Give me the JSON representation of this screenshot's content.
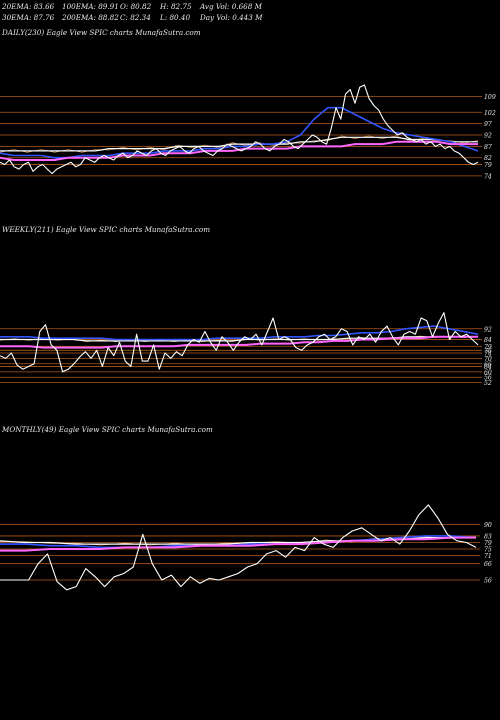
{
  "header": {
    "row1": [
      "20EMA: 83.66",
      "100EMA: 89.91",
      "O: 80.82",
      "H: 82.75",
      "Avg Vol: 0.668  M"
    ],
    "row2": [
      "30EMA: 87.76",
      "200EMA: 88.82",
      "C: 82.34",
      "L: 80.40",
      "Day Vol: 0.443 M"
    ]
  },
  "colors": {
    "background": "#000000",
    "price": "#ffffff",
    "ema_short": "#ff66ff",
    "ema_mid": "#3355ff",
    "ema_long": "#ffffff",
    "level_lines": "#b05a1c",
    "thin_ema": "#d4a060"
  },
  "chart_data": [
    {
      "type": "line",
      "title": "DAILY(230) Eagle  View  SPIC charts MunafaSutra.com",
      "y_ticks": [
        "109",
        "102",
        "97",
        "92",
        "87",
        "82",
        "79",
        "74"
      ],
      "ylim": [
        70,
        125
      ],
      "price": [
        80,
        79,
        81,
        78,
        77,
        79,
        80,
        76,
        78,
        79,
        77,
        75,
        77,
        78,
        79,
        80,
        78,
        79,
        82,
        81,
        80,
        82,
        83,
        82,
        81,
        83,
        84,
        82,
        83,
        85,
        84,
        83,
        85,
        86,
        84,
        83,
        85,
        86,
        87,
        85,
        84,
        86,
        87,
        85,
        84,
        83,
        85,
        86,
        88,
        87,
        86,
        85,
        86,
        87,
        89,
        88,
        86,
        85,
        87,
        88,
        90,
        89,
        87,
        86,
        88,
        90,
        92,
        91,
        89,
        88,
        95,
        104,
        99,
        110,
        112,
        106,
        113,
        114,
        108,
        105,
        103,
        99,
        96,
        94,
        92,
        93,
        91,
        90,
        89,
        90,
        88,
        89,
        87,
        88,
        86,
        87,
        85,
        84,
        82,
        80,
        79,
        80
      ],
      "ema_pink": [
        82,
        81,
        81,
        81,
        81,
        82,
        82,
        82,
        82,
        83,
        83,
        83,
        84,
        84,
        84,
        85,
        85,
        85,
        86,
        86,
        86,
        86,
        87,
        87,
        87,
        87,
        88,
        88,
        88,
        89,
        89,
        89,
        89,
        88,
        88,
        88
      ],
      "ema_blue": [
        84,
        83,
        83,
        83,
        82,
        82,
        83,
        83,
        83,
        84,
        84,
        84,
        85,
        85,
        85,
        86,
        86,
        87,
        87,
        88,
        88,
        89,
        92,
        99,
        104,
        104,
        101,
        98,
        95,
        93,
        92,
        91,
        90,
        89,
        87,
        85
      ],
      "ema_white": [
        85,
        85,
        85,
        85,
        85,
        85,
        85,
        85,
        86,
        86,
        86,
        86,
        86,
        87,
        87,
        87,
        87,
        88,
        88,
        88,
        88,
        88,
        89,
        89,
        90,
        91,
        91,
        91,
        91,
        91,
        90,
        90,
        90,
        89,
        89,
        89
      ]
    },
    {
      "type": "line",
      "title": "WEEKLY(211) Eagle  View  SPIC charts MunafaSutra.com",
      "y_ticks": [
        "92",
        "84",
        "79",
        "76",
        "74",
        "70",
        "66",
        "64",
        "60",
        "56",
        "52"
      ],
      "ylim": [
        48,
        100
      ],
      "price": [
        72,
        70,
        74,
        65,
        62,
        64,
        66,
        90,
        95,
        80,
        76,
        60,
        62,
        66,
        71,
        75,
        70,
        76,
        64,
        78,
        72,
        82,
        68,
        64,
        88,
        68,
        68,
        80,
        62,
        74,
        70,
        75,
        72,
        80,
        84,
        82,
        90,
        82,
        76,
        86,
        82,
        76,
        82,
        86,
        84,
        88,
        80,
        90,
        100,
        84,
        86,
        84,
        78,
        76,
        80,
        82,
        86,
        88,
        84,
        86,
        92,
        90,
        80,
        86,
        84,
        88,
        82,
        90,
        94,
        86,
        80,
        88,
        90,
        88,
        100,
        98,
        86,
        96,
        104,
        84,
        90,
        86,
        88,
        84,
        80
      ],
      "ema_pink": [
        79,
        79,
        79,
        78,
        78,
        78,
        78,
        78,
        79,
        79,
        79,
        79,
        79,
        80,
        80,
        80,
        80,
        80,
        81,
        81,
        81,
        82,
        82,
        83,
        83,
        84,
        84,
        85,
        85,
        85,
        86,
        86,
        86,
        86
      ],
      "ema_blue": [
        86,
        86,
        86,
        85,
        85,
        85,
        85,
        85,
        84,
        84,
        84,
        84,
        84,
        84,
        84,
        85,
        85,
        85,
        85,
        86,
        86,
        86,
        87,
        87,
        88,
        89,
        89,
        90,
        92,
        93,
        94,
        92,
        90,
        88
      ],
      "ema_white": [
        84,
        84,
        84,
        84,
        84,
        84,
        83,
        83,
        83,
        83,
        83,
        83,
        83,
        83,
        83,
        83,
        83,
        84,
        84,
        84,
        84,
        84,
        84,
        84,
        85,
        85,
        85,
        85,
        86,
        86,
        86,
        86,
        86,
        86
      ]
    },
    {
      "type": "line",
      "title": "MONTHLY(49) Eagle  View  SPIC charts MunafaSutra.com",
      "y_ticks": [
        "90",
        "83",
        "79",
        "75",
        "71",
        "66",
        "56"
      ],
      "ylim": [
        45,
        105
      ],
      "price": [
        56,
        56,
        56,
        56,
        66,
        72,
        55,
        50,
        52,
        63,
        58,
        52,
        58,
        60,
        64,
        84,
        66,
        56,
        59,
        52,
        58,
        54,
        57,
        56,
        58,
        60,
        64,
        66,
        72,
        74,
        70,
        76,
        74,
        82,
        78,
        76,
        82,
        86,
        88,
        84,
        80,
        82,
        78,
        86,
        96,
        102,
        94,
        84,
        80,
        79,
        76
      ],
      "ema_pink": [
        74,
        74,
        75,
        75,
        75,
        76,
        76,
        76,
        77,
        77,
        77,
        78,
        78,
        79,
        80,
        80,
        81,
        81,
        82,
        82
      ],
      "ema_blue": [
        78,
        78,
        77,
        77,
        76,
        76,
        76,
        77,
        77,
        77,
        78,
        78,
        78,
        79,
        80,
        81,
        82,
        83,
        83,
        82
      ],
      "ema_white": [
        80,
        79,
        79,
        78,
        78,
        78,
        78,
        78,
        78,
        78,
        79,
        79,
        79,
        80,
        80,
        81,
        81,
        82,
        82,
        82
      ]
    }
  ]
}
